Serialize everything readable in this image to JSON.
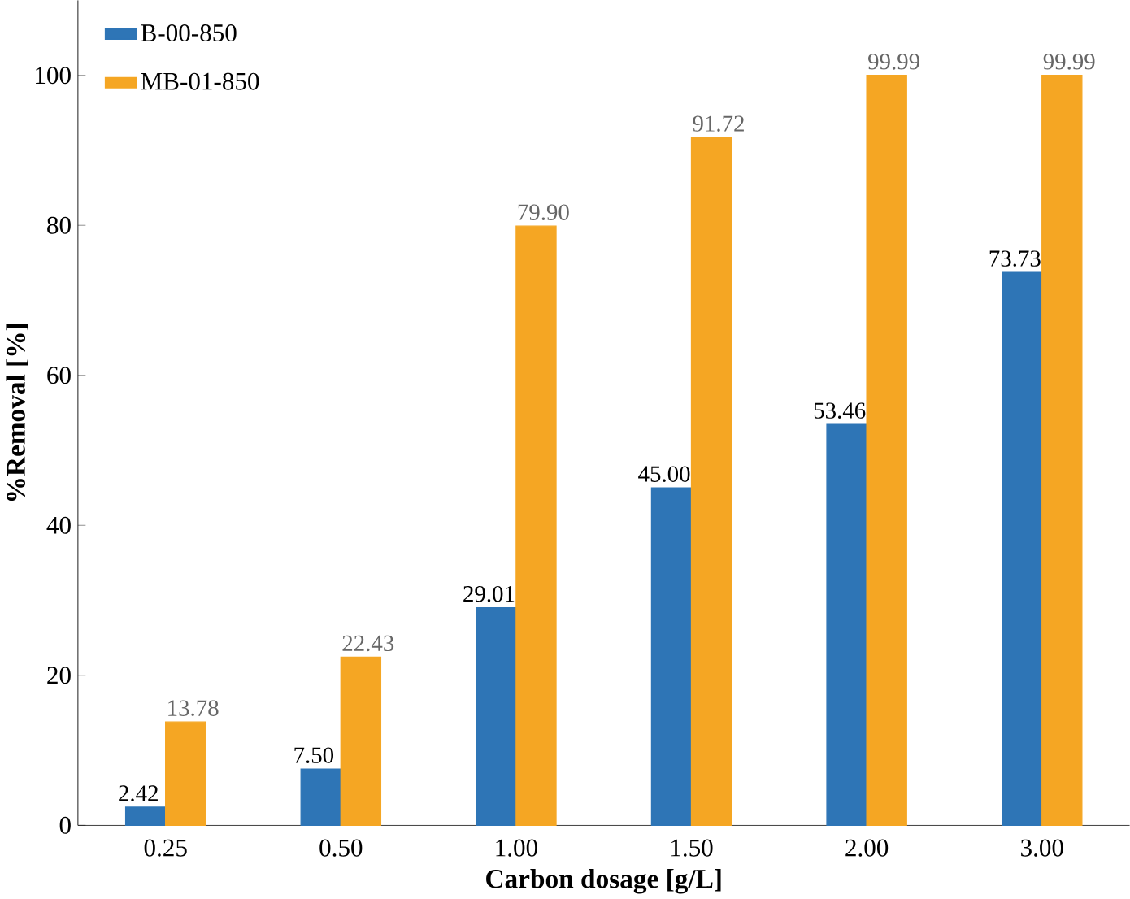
{
  "chart_data": {
    "type": "bar",
    "xlabel": "Carbon dosage [g/L]",
    "ylabel": "%Removal [%]",
    "categories": [
      "0.25",
      "0.50",
      "1.00",
      "1.50",
      "2.00",
      "3.00"
    ],
    "series": [
      {
        "name": "B-00-850",
        "color": "#2e75b6",
        "values": [
          2.42,
          7.5,
          29.01,
          45.0,
          53.46,
          73.73
        ],
        "value_labels": [
          "2.42",
          "7.50",
          "29.01",
          "45.00",
          "53.46",
          "73.73"
        ]
      },
      {
        "name": "MB-01-850",
        "color": "#f5a623",
        "values": [
          13.78,
          22.43,
          79.9,
          91.72,
          99.99,
          99.99
        ],
        "value_labels": [
          "13.78",
          "22.43",
          "79.90",
          "91.72",
          "99.99",
          "99.99"
        ]
      }
    ],
    "ylim": [
      0,
      110
    ],
    "yticks": [
      0,
      20,
      40,
      60,
      80,
      100
    ],
    "legend": "top left",
    "grid": false
  }
}
